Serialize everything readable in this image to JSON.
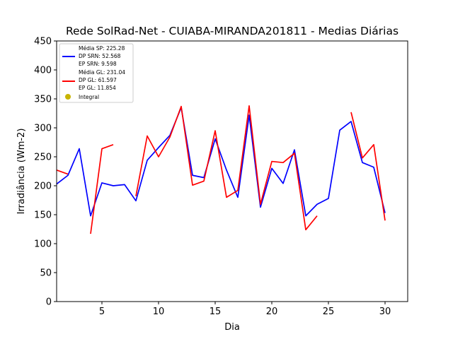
{
  "chart_data": {
    "type": "line",
    "title": "Rede SolRad-Net - CUIABA-MIRANDA201811 - Medias Diárias",
    "xlabel": "Dia",
    "ylabel": "Irradiância (Wm-2)",
    "xlim": [
      1,
      32
    ],
    "ylim": [
      0,
      450
    ],
    "xticks": [
      5,
      10,
      15,
      20,
      25,
      30
    ],
    "yticks": [
      0,
      50,
      100,
      150,
      200,
      250,
      300,
      350,
      400,
      450
    ],
    "grid": false,
    "legend_position": "top-left",
    "series": [
      {
        "name": "SP",
        "color": "#0000ff",
        "x": [
          1,
          2,
          3,
          4,
          5,
          6,
          7,
          8,
          9,
          10,
          11,
          12,
          13,
          14,
          15,
          16,
          17,
          18,
          19,
          20,
          21,
          22,
          23,
          24,
          25,
          26,
          27,
          28,
          29,
          30
        ],
        "y": [
          203,
          218,
          264,
          148,
          205,
          200,
          202,
          174,
          244,
          266,
          287,
          335,
          218,
          214,
          281,
          227,
          180,
          322,
          163,
          230,
          204,
          262,
          148,
          168,
          178,
          296,
          311,
          240,
          232,
          153
        ]
      },
      {
        "name": "GL",
        "color": "#ff0000",
        "x": [
          1,
          2,
          3,
          4,
          5,
          6,
          7,
          8,
          9,
          10,
          11,
          12,
          13,
          14,
          15,
          16,
          17,
          18,
          19,
          20,
          21,
          22,
          23,
          24,
          25,
          26,
          27,
          28,
          29,
          30
        ],
        "y": [
          227,
          220,
          null,
          117,
          264,
          271,
          null,
          182,
          286,
          250,
          284,
          337,
          201,
          208,
          295,
          180,
          192,
          338,
          168,
          242,
          240,
          256,
          124,
          148,
          null,
          null,
          327,
          248,
          271,
          140
        ]
      }
    ],
    "legend": {
      "sp_lines": [
        "Média SP: 225.28",
        "DP SRN: 52.568",
        "EP SRN: 9.598"
      ],
      "gl_lines": [
        "Média GL: 231.04",
        "DP GL: 61.597",
        "EP GL: 11.854"
      ],
      "integral_label": "Integral",
      "integral_color": "#c8b400"
    }
  }
}
